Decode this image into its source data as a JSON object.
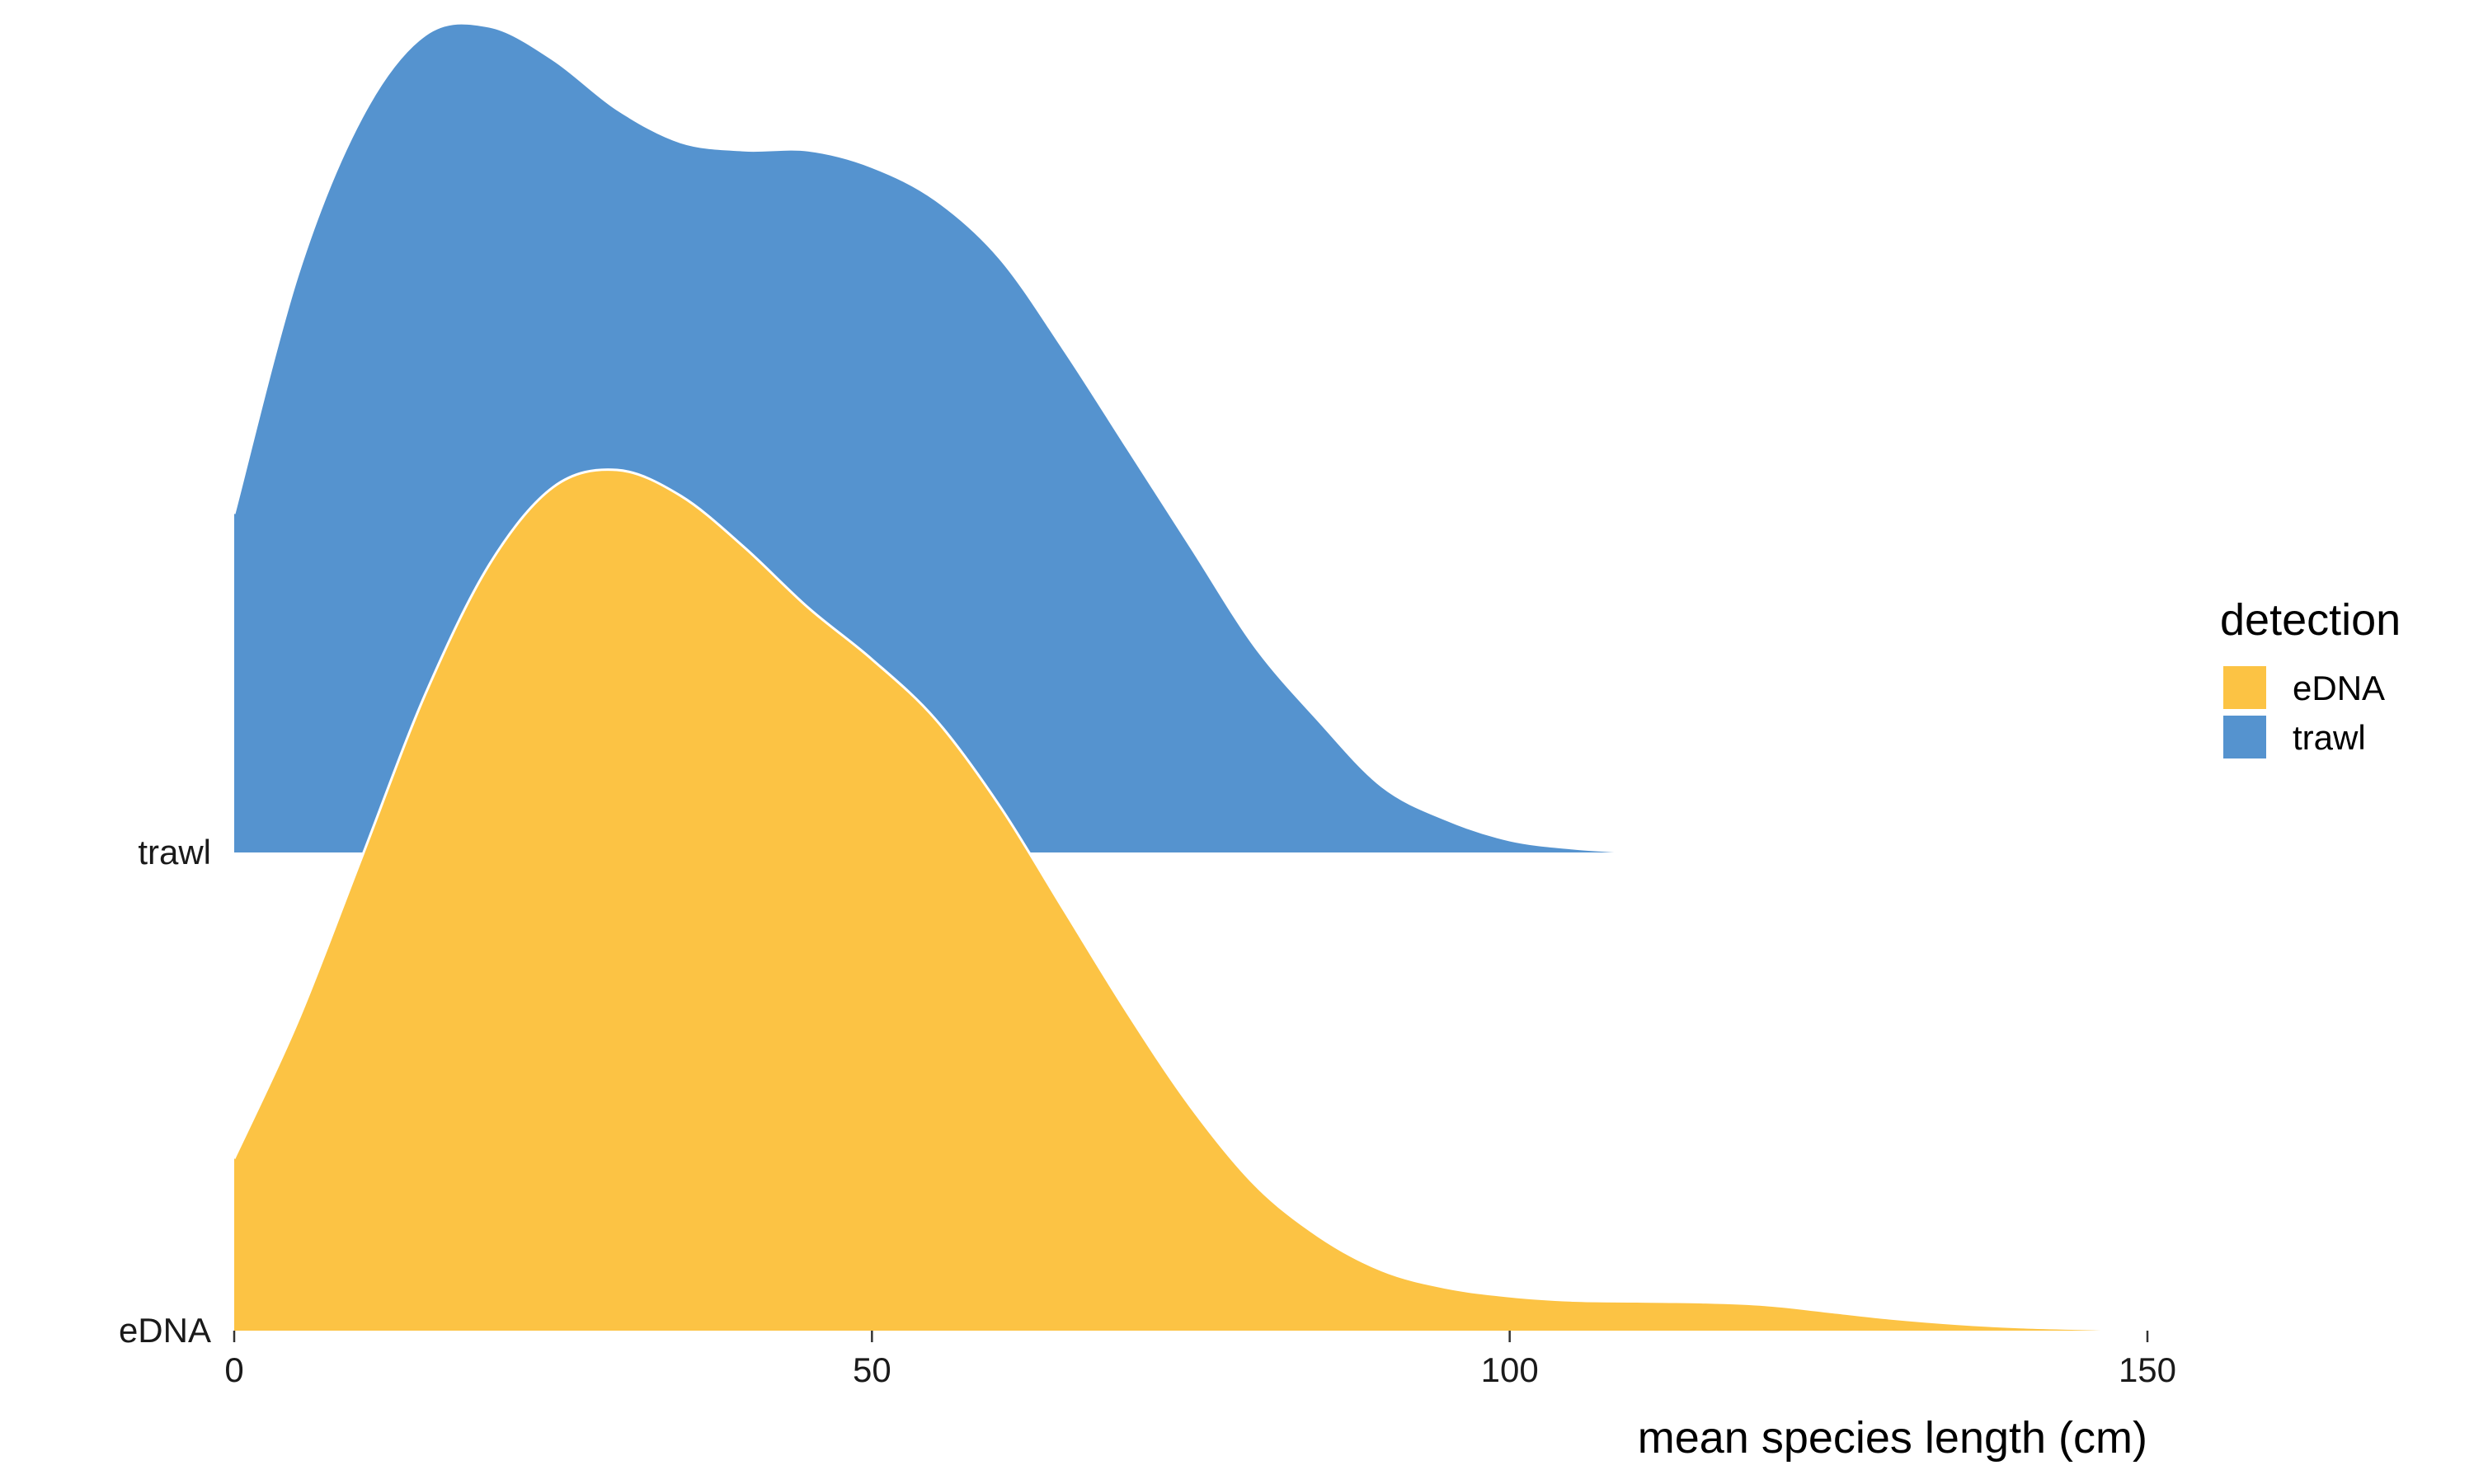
{
  "chart_data": {
    "type": "area",
    "subtype": "ridgeline-density",
    "title": "",
    "xlabel": "mean species length (cm)",
    "ylabel": "",
    "xlim": [
      0,
      150
    ],
    "x_ticks": [
      0,
      50,
      100,
      150
    ],
    "categories": [
      "eDNA",
      "trawl"
    ],
    "legend": {
      "title": "detection",
      "placement": "right",
      "entries": [
        "eDNA",
        "trawl"
      ]
    },
    "grid": false,
    "series": [
      {
        "name": "eDNA",
        "color": "#FCC344",
        "x": [
          0,
          5,
          10,
          15,
          20,
          25,
          30,
          35,
          40,
          45,
          50,
          55,
          60,
          65,
          70,
          75,
          80,
          85,
          90,
          95,
          100,
          105,
          110,
          115,
          120,
          125,
          130,
          135,
          140,
          145,
          150
        ],
        "density": [
          0.2,
          0.36,
          0.55,
          0.74,
          0.89,
          0.98,
          1.0,
          0.97,
          0.91,
          0.84,
          0.78,
          0.71,
          0.61,
          0.49,
          0.37,
          0.26,
          0.17,
          0.11,
          0.07,
          0.05,
          0.04,
          0.035,
          0.034,
          0.033,
          0.03,
          0.022,
          0.014,
          0.008,
          0.004,
          0.002,
          0.0
        ]
      },
      {
        "name": "trawl",
        "color": "#5593CF",
        "x": [
          0,
          5,
          10,
          15,
          20,
          25,
          30,
          35,
          40,
          45,
          50,
          55,
          60,
          65,
          70,
          75,
          80,
          85,
          90,
          95,
          100,
          105,
          110
        ],
        "density": [
          0.41,
          0.7,
          0.89,
          0.99,
          1.0,
          0.96,
          0.9,
          0.86,
          0.85,
          0.85,
          0.83,
          0.79,
          0.72,
          0.61,
          0.49,
          0.37,
          0.25,
          0.16,
          0.08,
          0.04,
          0.015,
          0.005,
          0.0
        ]
      }
    ]
  }
}
